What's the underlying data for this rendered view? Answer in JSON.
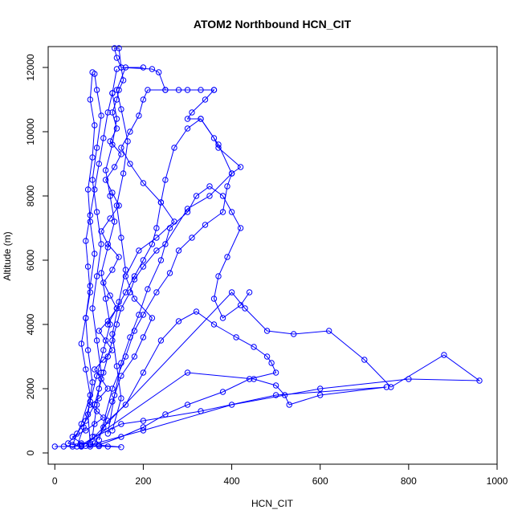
{
  "chart_data": {
    "type": "line",
    "title": "ATOM2 Northbound HCN_CIT",
    "xlabel": "HCN_CIT",
    "ylabel": "Altitude (m)",
    "xlim": [
      -15,
      1000
    ],
    "ylim": [
      -350,
      12650
    ],
    "x_ticks": [
      0,
      200,
      400,
      600,
      800,
      1000
    ],
    "y_ticks": [
      0,
      2000,
      4000,
      6000,
      8000,
      10000,
      12000
    ],
    "x_tick_labels": [
      "0",
      "200",
      "400",
      "600",
      "800",
      "1000"
    ],
    "y_tick_labels": [
      "0",
      "2000",
      "4000",
      "6000",
      "8000",
      "10000",
      "12000"
    ],
    "grid": false,
    "marker": "open-circle",
    "color": "#0000ff",
    "series": [
      {
        "values": [
          [
            0,
            200
          ],
          [
            20,
            200
          ],
          [
            40,
            200
          ],
          [
            60,
            220
          ],
          [
            80,
            200
          ],
          [
            100,
            210
          ],
          [
            120,
            200
          ],
          [
            150,
            180
          ],
          [
            60,
            300
          ],
          [
            40,
            500
          ],
          [
            70,
            700
          ],
          [
            90,
            900
          ],
          [
            110,
            1100
          ],
          [
            95,
            1300
          ],
          [
            80,
            1500
          ],
          [
            100,
            1700
          ],
          [
            120,
            2000
          ],
          [
            105,
            2300
          ],
          [
            90,
            2600
          ],
          [
            110,
            2900
          ],
          [
            130,
            3200
          ],
          [
            115,
            3500
          ],
          [
            100,
            3800
          ],
          [
            120,
            4100
          ],
          [
            140,
            4500
          ],
          [
            125,
            4900
          ],
          [
            110,
            5300
          ],
          [
            130,
            5700
          ],
          [
            145,
            6100
          ],
          [
            120,
            6500
          ],
          [
            105,
            6900
          ],
          [
            125,
            7300
          ],
          [
            145,
            7700
          ],
          [
            130,
            8100
          ],
          [
            115,
            8500
          ],
          [
            135,
            8900
          ],
          [
            150,
            9300
          ],
          [
            125,
            9700
          ],
          [
            140,
            10100
          ],
          [
            130,
            10600
          ],
          [
            140,
            11000
          ],
          [
            145,
            11300
          ],
          [
            155,
            11600
          ],
          [
            150,
            12000
          ],
          [
            140,
            12300
          ],
          [
            135,
            12600
          ],
          [
            145,
            12600
          ],
          [
            150,
            12000
          ],
          [
            220,
            11950
          ],
          [
            235,
            11850
          ],
          [
            250,
            11300
          ],
          [
            300,
            11300
          ],
          [
            360,
            11300
          ],
          [
            340,
            11000
          ],
          [
            310,
            10600
          ],
          [
            300,
            10400
          ],
          [
            330,
            10400
          ],
          [
            360,
            9800
          ],
          [
            370,
            9500
          ],
          [
            420,
            8900
          ],
          [
            400,
            8700
          ],
          [
            350,
            8000
          ],
          [
            300,
            7600
          ],
          [
            250,
            6500
          ],
          [
            230,
            6300
          ],
          [
            200,
            5800
          ],
          [
            180,
            5400
          ],
          [
            170,
            5000
          ],
          [
            150,
            4500
          ],
          [
            140,
            4000
          ],
          [
            130,
            3500
          ],
          [
            120,
            3000
          ],
          [
            110,
            2500
          ],
          [
            100,
            2000
          ],
          [
            90,
            1500
          ],
          [
            70,
            1000
          ],
          [
            50,
            600
          ],
          [
            30,
            300
          ],
          [
            60,
            200
          ]
        ]
      },
      {
        "values": [
          [
            60,
            200
          ],
          [
            300,
            2500
          ],
          [
            450,
            2300
          ],
          [
            500,
            2100
          ],
          [
            520,
            1800
          ],
          [
            530,
            1500
          ],
          [
            600,
            1800
          ],
          [
            750,
            2050
          ],
          [
            500,
            1800
          ],
          [
            330,
            1300
          ],
          [
            200,
            1000
          ],
          [
            150,
            900
          ],
          [
            90,
            500
          ],
          [
            60,
            250
          ]
        ]
      },
      {
        "values": [
          [
            70,
            220
          ],
          [
            400,
            5000
          ],
          [
            430,
            4500
          ],
          [
            480,
            3800
          ],
          [
            540,
            3700
          ],
          [
            620,
            3800
          ],
          [
            700,
            2900
          ],
          [
            760,
            2050
          ],
          [
            880,
            3050
          ],
          [
            960,
            2250
          ],
          [
            800,
            2300
          ],
          [
            600,
            2000
          ],
          [
            400,
            1500
          ],
          [
            200,
            700
          ],
          [
            80,
            250
          ]
        ]
      },
      {
        "values": [
          [
            90,
            300
          ],
          [
            120,
            1000
          ],
          [
            160,
            1500
          ],
          [
            200,
            2500
          ],
          [
            240,
            3500
          ],
          [
            280,
            4100
          ],
          [
            320,
            4400
          ],
          [
            360,
            4000
          ],
          [
            410,
            3600
          ],
          [
            450,
            3300
          ],
          [
            480,
            3000
          ],
          [
            490,
            2800
          ],
          [
            500,
            2500
          ],
          [
            440,
            2300
          ],
          [
            380,
            1900
          ],
          [
            300,
            1500
          ],
          [
            250,
            1200
          ],
          [
            200,
            800
          ],
          [
            150,
            500
          ],
          [
            100,
            250
          ]
        ]
      },
      {
        "values": [
          [
            100,
            400
          ],
          [
            130,
            2000
          ],
          [
            160,
            3000
          ],
          [
            180,
            3800
          ],
          [
            200,
            4300
          ],
          [
            230,
            5000
          ],
          [
            260,
            5600
          ],
          [
            280,
            6300
          ],
          [
            310,
            6700
          ],
          [
            340,
            7100
          ],
          [
            380,
            7500
          ],
          [
            390,
            8300
          ],
          [
            400,
            8700
          ],
          [
            370,
            9600
          ],
          [
            330,
            10400
          ],
          [
            300,
            10100
          ],
          [
            270,
            9500
          ],
          [
            250,
            8500
          ],
          [
            240,
            7800
          ],
          [
            230,
            7000
          ],
          [
            220,
            6500
          ],
          [
            200,
            6000
          ],
          [
            180,
            5500
          ],
          [
            160,
            5000
          ],
          [
            140,
            4500
          ],
          [
            120,
            4000
          ]
        ]
      },
      {
        "values": [
          [
            85,
            500
          ],
          [
            95,
            1500
          ],
          [
            105,
            2500
          ],
          [
            95,
            3500
          ],
          [
            85,
            4500
          ],
          [
            95,
            5500
          ],
          [
            105,
            6500
          ],
          [
            95,
            7500
          ],
          [
            85,
            8500
          ],
          [
            95,
            9500
          ],
          [
            105,
            10500
          ],
          [
            95,
            11300
          ],
          [
            90,
            11800
          ]
        ]
      },
      {
        "values": [
          [
            80,
            300
          ],
          [
            75,
            1200
          ],
          [
            85,
            2200
          ],
          [
            75,
            3200
          ],
          [
            70,
            4200
          ],
          [
            80,
            5200
          ],
          [
            90,
            6200
          ],
          [
            80,
            7200
          ],
          [
            75,
            8200
          ],
          [
            85,
            9200
          ],
          [
            90,
            10200
          ],
          [
            80,
            11000
          ],
          [
            85,
            11850
          ]
        ]
      },
      {
        "values": [
          [
            120,
            600
          ],
          [
            135,
            1800
          ],
          [
            150,
            2800
          ],
          [
            170,
            3600
          ],
          [
            190,
            4300
          ],
          [
            210,
            5100
          ],
          [
            240,
            6000
          ],
          [
            260,
            7000
          ],
          [
            300,
            7500
          ],
          [
            320,
            8000
          ],
          [
            350,
            8300
          ],
          [
            380,
            8000
          ],
          [
            400,
            7500
          ],
          [
            420,
            7000
          ],
          [
            390,
            6100
          ],
          [
            370,
            5500
          ],
          [
            360,
            4800
          ],
          [
            380,
            4200
          ],
          [
            420,
            4600
          ],
          [
            440,
            5000
          ]
        ]
      },
      {
        "values": [
          [
            110,
            800
          ],
          [
            130,
            1600
          ],
          [
            150,
            2400
          ],
          [
            180,
            3000
          ],
          [
            200,
            3600
          ],
          [
            220,
            4200
          ],
          [
            180,
            4800
          ],
          [
            160,
            5500
          ],
          [
            190,
            6300
          ],
          [
            230,
            6700
          ],
          [
            270,
            7200
          ],
          [
            240,
            7800
          ],
          [
            200,
            8400
          ],
          [
            170,
            9000
          ],
          [
            150,
            9500
          ],
          [
            170,
            10000
          ],
          [
            190,
            10500
          ],
          [
            200,
            11000
          ],
          [
            210,
            11300
          ],
          [
            250,
            11300
          ],
          [
            280,
            11300
          ],
          [
            330,
            11300
          ],
          [
            360,
            11300
          ]
        ]
      },
      {
        "values": [
          [
            40,
            250
          ],
          [
            60,
            900
          ],
          [
            80,
            1800
          ],
          [
            70,
            2600
          ],
          [
            60,
            3400
          ],
          [
            70,
            4200
          ],
          [
            80,
            5000
          ],
          [
            75,
            5800
          ],
          [
            70,
            6600
          ],
          [
            80,
            7400
          ],
          [
            90,
            8200
          ],
          [
            100,
            9000
          ],
          [
            110,
            9800
          ],
          [
            120,
            10600
          ],
          [
            130,
            11200
          ],
          [
            140,
            11950
          ]
        ]
      },
      {
        "values": [
          [
            130,
            700
          ],
          [
            150,
            1700
          ],
          [
            140,
            2700
          ],
          [
            130,
            3700
          ],
          [
            145,
            4700
          ],
          [
            160,
            5700
          ],
          [
            150,
            6700
          ],
          [
            140,
            7700
          ],
          [
            155,
            8700
          ],
          [
            165,
            9700
          ],
          [
            150,
            10700
          ],
          [
            140,
            11300
          ],
          [
            160,
            12000
          ],
          [
            200,
            12000
          ]
        ]
      },
      {
        "values": [
          [
            50,
            200
          ],
          [
            65,
            800
          ],
          [
            80,
            1600
          ],
          [
            95,
            2400
          ],
          [
            110,
            3200
          ],
          [
            125,
            4000
          ],
          [
            115,
            4800
          ],
          [
            105,
            5600
          ],
          [
            120,
            6400
          ],
          [
            135,
            7200
          ],
          [
            125,
            8000
          ],
          [
            115,
            8800
          ],
          [
            130,
            9600
          ],
          [
            140,
            10400
          ],
          [
            130,
            11200
          ]
        ]
      }
    ]
  }
}
